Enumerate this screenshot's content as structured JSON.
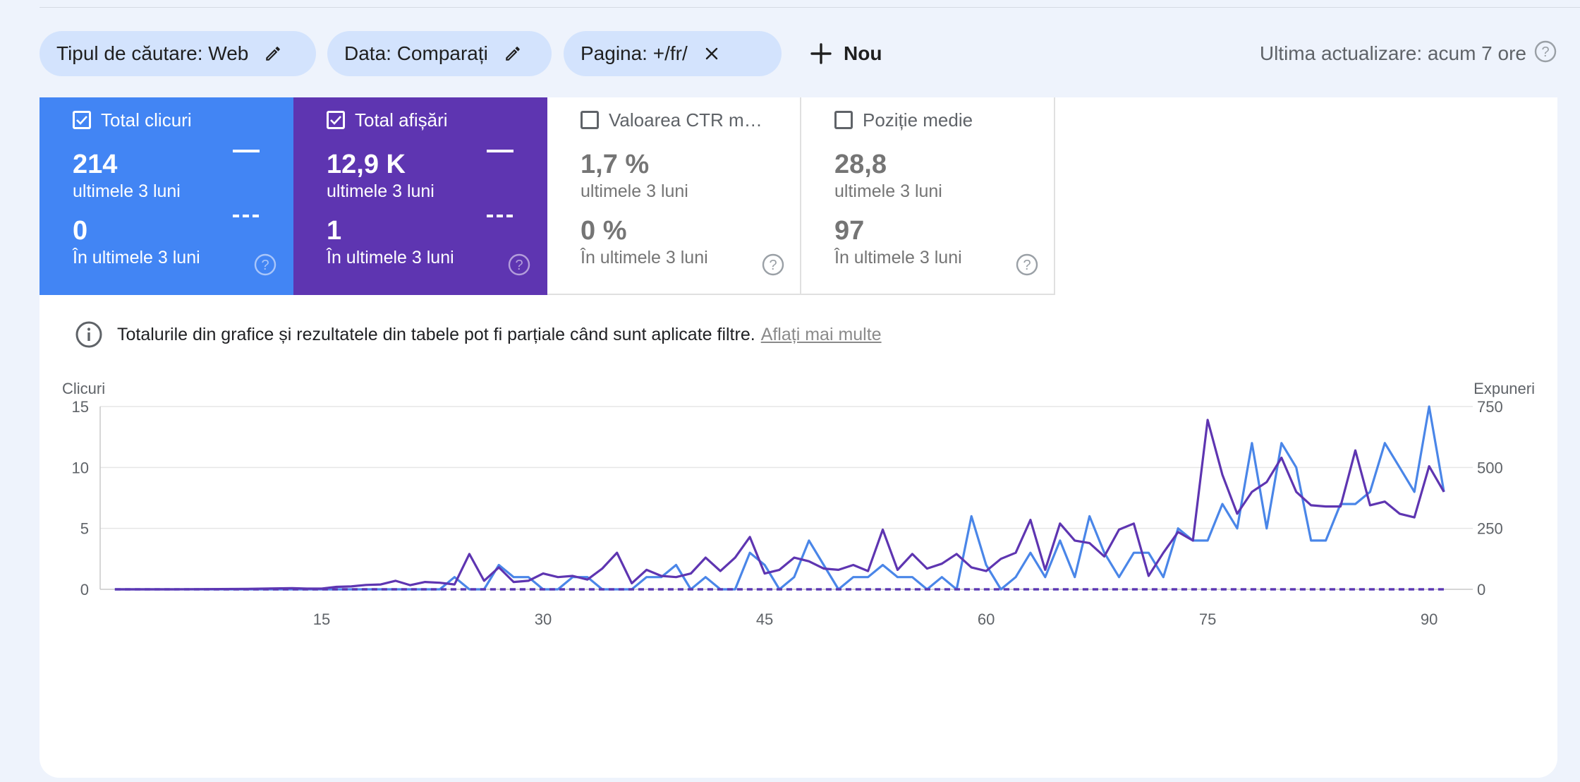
{
  "filters": {
    "chips": [
      {
        "label": "Tipul de căutare: Web",
        "icon": "pencil-icon"
      },
      {
        "label": "Data: Comparați",
        "icon": "pencil-icon"
      },
      {
        "label": "Pagina: +/fr/",
        "icon": "close-icon"
      }
    ],
    "new_label": "Nou",
    "last_update": "Ultima actualizare: acum 7 ore"
  },
  "metrics": [
    {
      "label": "Total clicuri",
      "checked": true,
      "value": "214",
      "period": "ultimele 3 luni",
      "compare_value": "0",
      "compare_period": "În ultimele 3 luni",
      "color": "#4285f4"
    },
    {
      "label": "Total afișări",
      "checked": true,
      "value": "12,9 K",
      "period": "ultimele 3 luni",
      "compare_value": "1",
      "compare_period": "În ultimele 3 luni",
      "color": "#5e35b1"
    },
    {
      "label": "Valoarea CTR medie",
      "checked": false,
      "value": "1,7 %",
      "period": "ultimele 3 luni",
      "compare_value": "0 %",
      "compare_period": "În ultimele 3 luni"
    },
    {
      "label": "Poziție medie",
      "checked": false,
      "value": "28,8",
      "period": "ultimele 3 luni",
      "compare_value": "97",
      "compare_period": "În ultimele 3 luni"
    }
  ],
  "info": {
    "text": "Totalurile din grafice și rezultatele din tabele pot fi parțiale când sunt aplicate filtre.",
    "link": "Aflați mai multe"
  },
  "chart_data": {
    "type": "line",
    "ylabel_left": "Clicuri",
    "ylabel_right": "Expuneri",
    "x_ticks": [
      15,
      30,
      45,
      60,
      75,
      90
    ],
    "y_left_ticks": [
      0,
      5,
      10,
      15
    ],
    "y_right_ticks": [
      0,
      250,
      500,
      750
    ],
    "ylim_left": [
      0,
      15
    ],
    "ylim_right": [
      0,
      750
    ],
    "xlim": [
      0,
      92
    ],
    "series": [
      {
        "axis": "left",
        "color": "#4a86e8",
        "x": [
          1,
          5,
          10,
          15,
          20,
          21,
          22,
          23,
          24,
          25,
          26,
          27,
          28,
          29,
          30,
          31,
          32,
          33,
          34,
          35,
          36,
          37,
          38,
          39,
          40,
          41,
          42,
          43,
          44,
          45,
          46,
          47,
          48,
          49,
          50,
          51,
          52,
          53,
          54,
          55,
          56,
          57,
          58,
          59,
          60,
          61,
          62,
          63,
          64,
          65,
          66,
          67,
          68,
          69,
          70,
          71,
          72,
          73,
          74,
          75,
          76,
          77,
          78,
          79,
          80,
          81,
          82,
          83,
          84,
          85,
          86,
          87,
          88,
          89,
          90,
          91
        ],
        "values": [
          0,
          0,
          0,
          0,
          0,
          0,
          0,
          0,
          1,
          0,
          0,
          2,
          1,
          1,
          0,
          0,
          1,
          1,
          0,
          0,
          0,
          1,
          1,
          2,
          0,
          1,
          0,
          0,
          3,
          2,
          0,
          1,
          4,
          2,
          0,
          1,
          1,
          2,
          1,
          1,
          0,
          1,
          0,
          6,
          2,
          0,
          1,
          3,
          1,
          4,
          1,
          6,
          3,
          1,
          3,
          3,
          1,
          5,
          4,
          4,
          7,
          5,
          12,
          5,
          12,
          10,
          4,
          4,
          7,
          7,
          8,
          12,
          10,
          8,
          15,
          8
        ]
      },
      {
        "axis": "right",
        "color": "#5e35b1",
        "x": [
          1,
          5,
          10,
          13,
          14,
          15,
          16,
          17,
          18,
          19,
          20,
          21,
          22,
          23,
          24,
          25,
          26,
          27,
          28,
          29,
          30,
          31,
          32,
          33,
          34,
          35,
          36,
          37,
          38,
          39,
          40,
          41,
          42,
          43,
          44,
          45,
          46,
          47,
          48,
          49,
          50,
          51,
          52,
          53,
          54,
          55,
          56,
          57,
          58,
          59,
          60,
          61,
          62,
          63,
          64,
          65,
          66,
          67,
          68,
          69,
          70,
          71,
          72,
          73,
          74,
          75,
          76,
          77,
          78,
          79,
          80,
          81,
          82,
          83,
          84,
          85,
          86,
          87,
          88,
          89,
          90,
          91
        ],
        "values": [
          0,
          0,
          2,
          5,
          3,
          3,
          10,
          12,
          18,
          20,
          35,
          17,
          30,
          27,
          20,
          145,
          35,
          90,
          30,
          35,
          65,
          50,
          55,
          40,
          85,
          150,
          25,
          80,
          55,
          50,
          65,
          130,
          75,
          130,
          215,
          65,
          80,
          130,
          115,
          85,
          80,
          100,
          75,
          245,
          80,
          145,
          85,
          105,
          145,
          90,
          75,
          125,
          150,
          285,
          80,
          270,
          200,
          190,
          135,
          245,
          270,
          55,
          150,
          235,
          200,
          695,
          470,
          310,
          400,
          440,
          540,
          400,
          345,
          340,
          340,
          570,
          345,
          360,
          310,
          295,
          505,
          400
        ]
      },
      {
        "axis": "left",
        "color": "#4a86e8",
        "dashed": true,
        "x": [
          1,
          91
        ],
        "values": [
          0,
          0
        ]
      },
      {
        "axis": "right",
        "color": "#5e35b1",
        "dashed": true,
        "x": [
          1,
          91
        ],
        "values": [
          0,
          0
        ]
      }
    ]
  }
}
